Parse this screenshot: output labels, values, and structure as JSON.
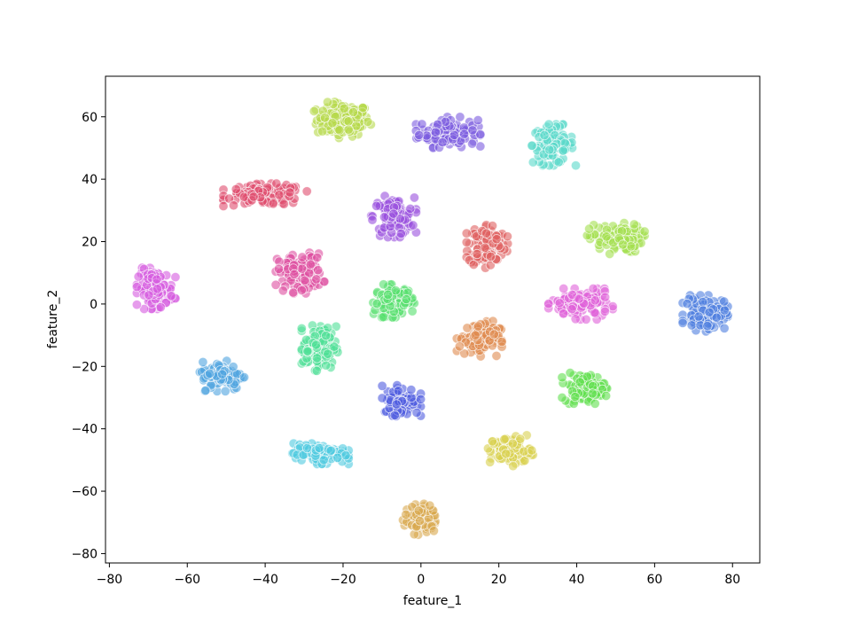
{
  "chart_data": {
    "type": "scatter",
    "title": "",
    "xlabel": "feature_1",
    "ylabel": "feature_2",
    "xlim": [
      -81,
      87
    ],
    "ylim": [
      -83,
      73
    ],
    "xticks": [
      -80,
      -60,
      -40,
      -20,
      0,
      20,
      40,
      60,
      80
    ],
    "yticks": [
      -80,
      -60,
      -40,
      -20,
      0,
      20,
      40,
      60
    ],
    "xtick_labels": [
      "−80",
      "−60",
      "−40",
      "−20",
      "0",
      "20",
      "40",
      "60",
      "80"
    ],
    "ytick_labels": [
      "−80",
      "−60",
      "−40",
      "−20",
      "0",
      "20",
      "40",
      "60"
    ],
    "grid": false,
    "legend": "none",
    "marker_alpha": 0.6,
    "clusters": [
      {
        "color": "#b5d94a",
        "center": [
          -20,
          59
        ],
        "spread": [
          4.5,
          3.5
        ],
        "points": 130
      },
      {
        "color": "#7b5cdf",
        "center": [
          7,
          55
        ],
        "spread": [
          5.0,
          3.0
        ],
        "points": 130
      },
      {
        "color": "#5ad9c9",
        "center": [
          34,
          51
        ],
        "spread": [
          3.5,
          4.0
        ],
        "points": 110
      },
      {
        "color": "#df4c6e",
        "center": [
          -40,
          35
        ],
        "spread": [
          6.5,
          2.2
        ],
        "points": 130
      },
      {
        "color": "#9a50de",
        "center": [
          -7,
          28
        ],
        "spread": [
          3.5,
          4.0
        ],
        "points": 110
      },
      {
        "color": "#df6060",
        "center": [
          17,
          19
        ],
        "spread": [
          3.2,
          4.5
        ],
        "points": 130
      },
      {
        "color": "#a3e04f",
        "center": [
          50,
          21
        ],
        "spread": [
          4.5,
          3.0
        ],
        "points": 110
      },
      {
        "color": "#de4fa0",
        "center": [
          -31,
          10
        ],
        "spread": [
          3.8,
          4.0
        ],
        "points": 120
      },
      {
        "color": "#d65ae0",
        "center": [
          -68,
          5
        ],
        "spread": [
          3.0,
          4.0
        ],
        "points": 120
      },
      {
        "color": "#55df6c",
        "center": [
          -7,
          1
        ],
        "spread": [
          3.2,
          3.2
        ],
        "points": 110
      },
      {
        "color": "#df61d9",
        "center": [
          41,
          0
        ],
        "spread": [
          5.0,
          3.0
        ],
        "points": 120
      },
      {
        "color": "#4f7fe0",
        "center": [
          73,
          -3
        ],
        "spread": [
          3.5,
          3.5
        ],
        "points": 120
      },
      {
        "color": "#df8a4f",
        "center": [
          15,
          -11
        ],
        "spread": [
          3.5,
          3.5
        ],
        "points": 110
      },
      {
        "color": "#4fdf96",
        "center": [
          -26,
          -14
        ],
        "spread": [
          2.8,
          4.5
        ],
        "points": 120
      },
      {
        "color": "#4fa3e0",
        "center": [
          -51,
          -23
        ],
        "spread": [
          3.5,
          3.0
        ],
        "points": 110
      },
      {
        "color": "#4f5cdf",
        "center": [
          -5,
          -31
        ],
        "spread": [
          3.0,
          3.0
        ],
        "points": 110
      },
      {
        "color": "#61df4f",
        "center": [
          42,
          -27
        ],
        "spread": [
          3.5,
          3.0
        ],
        "points": 110
      },
      {
        "color": "#d9d04f",
        "center": [
          23,
          -47
        ],
        "spread": [
          3.5,
          3.0
        ],
        "points": 100
      },
      {
        "color": "#4fc9df",
        "center": [
          -26,
          -48
        ],
        "spread": [
          4.5,
          2.0
        ],
        "points": 110
      },
      {
        "color": "#d9a84f",
        "center": [
          0,
          -69
        ],
        "spread": [
          2.8,
          3.0
        ],
        "points": 100
      }
    ]
  }
}
